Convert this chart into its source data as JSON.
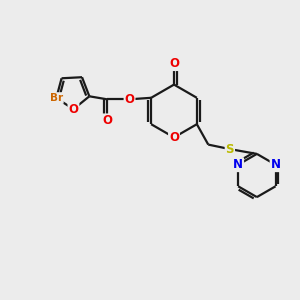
{
  "bg_color": "#ececec",
  "bond_color": "#1a1a1a",
  "bond_width": 1.6,
  "atom_colors": {
    "O": "#ee0000",
    "N": "#0000ee",
    "S": "#bbbb00",
    "Br": "#cc6600",
    "C": "#1a1a1a"
  },
  "font_size_atom": 8.5,
  "font_size_br": 7.5,
  "font_size_ch2": 7.0
}
